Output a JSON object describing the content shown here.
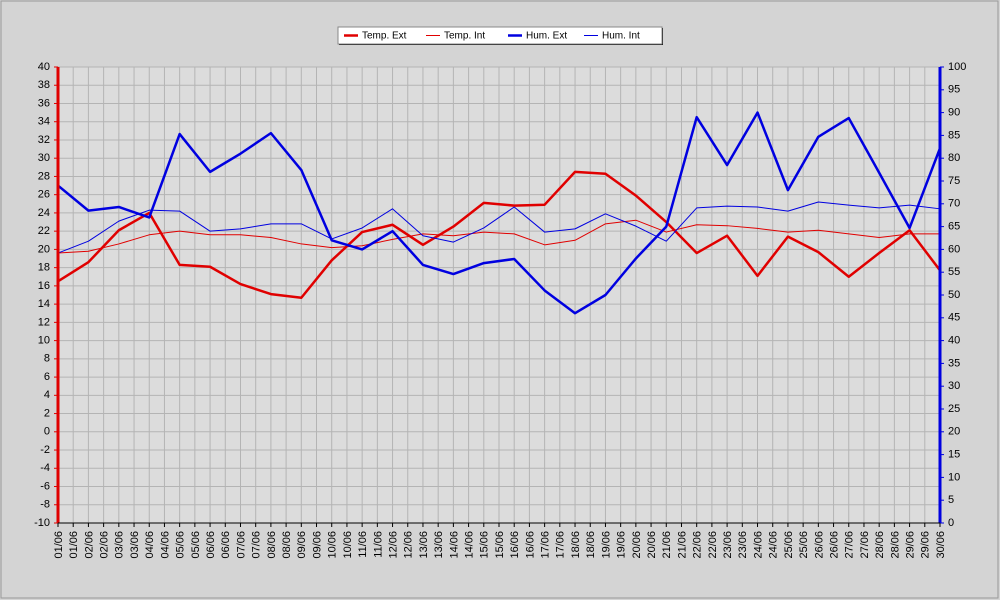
{
  "chart_data": {
    "type": "line",
    "categories": [
      "01/06",
      "02/06",
      "03/06",
      "04/06",
      "05/06",
      "06/06",
      "07/06",
      "08/06",
      "09/06",
      "10/06",
      "11/06",
      "12/06",
      "13/06",
      "14/06",
      "15/06",
      "16/06",
      "17/06",
      "18/06",
      "19/06",
      "20/06",
      "21/06",
      "22/06",
      "23/06",
      "24/06",
      "25/06",
      "26/06",
      "27/06",
      "28/06",
      "29/06",
      "30/06"
    ],
    "series": [
      {
        "name": "Temp. Ext",
        "color": "#e00000",
        "width": 2.5,
        "values": [
          16.5,
          18.6,
          22.1,
          24.0,
          18.3,
          18.1,
          16.2,
          15.1,
          14.7,
          18.8,
          21.9,
          22.7,
          20.5,
          22.5,
          25.1,
          24.8,
          24.9,
          28.5,
          28.3,
          25.9,
          23.0,
          19.6,
          21.5,
          17.1,
          21.4,
          19.7,
          17.0,
          19.6,
          22.1,
          17.7
        ]
      },
      {
        "name": "Temp. Int",
        "color": "#e00000",
        "width": 1,
        "values": [
          19.6,
          19.8,
          20.6,
          21.6,
          22.0,
          21.6,
          21.6,
          21.3,
          20.6,
          20.2,
          20.4,
          21.1,
          21.7,
          21.5,
          21.9,
          21.7,
          20.5,
          21.0,
          22.8,
          23.2,
          21.9,
          22.7,
          22.6,
          22.3,
          21.9,
          22.1,
          21.7,
          21.3,
          21.7,
          21.7
        ]
      },
      {
        "name": "Hum. Ext",
        "color": "#0000e0",
        "width": 2.5,
        "axis": "y2",
        "values": [
          74,
          68.5,
          69.3,
          67,
          85.3,
          77,
          81,
          85.5,
          77.4,
          62,
          60,
          64,
          56.6,
          54.6,
          57,
          57.9,
          51,
          46,
          50,
          58,
          65,
          89,
          78.5,
          90,
          73,
          84.7,
          88.8,
          76.8,
          64.7,
          82.2
        ]
      },
      {
        "name": "Hum. Int",
        "color": "#0000e0",
        "width": 1,
        "axis": "y2",
        "values": [
          59.2,
          61.8,
          66.2,
          68.6,
          68.4,
          64,
          64.5,
          65.6,
          65.6,
          62.3,
          64.7,
          68.9,
          63,
          61.6,
          64.7,
          69.3,
          63.8,
          64.5,
          67.8,
          65.1,
          61.8,
          69.1,
          69.5,
          69.3,
          68.4,
          70.4,
          69.7,
          69.1,
          69.7,
          68.9
        ]
      }
    ],
    "ylim": [
      -10,
      40
    ],
    "yticks": [
      -10,
      -8,
      -6,
      -4,
      -2,
      0,
      2,
      4,
      6,
      8,
      10,
      12,
      14,
      16,
      18,
      20,
      22,
      24,
      26,
      28,
      30,
      32,
      34,
      36,
      38,
      40
    ],
    "y2lim": [
      0,
      100
    ],
    "y2ticks": [
      0,
      5,
      10,
      15,
      20,
      25,
      30,
      35,
      40,
      45,
      50,
      55,
      60,
      65,
      70,
      75,
      80,
      85,
      90,
      95,
      100
    ],
    "y_axis_color": "#e00000",
    "y2_axis_color": "#0000e0",
    "grid": true,
    "legend": "top"
  }
}
